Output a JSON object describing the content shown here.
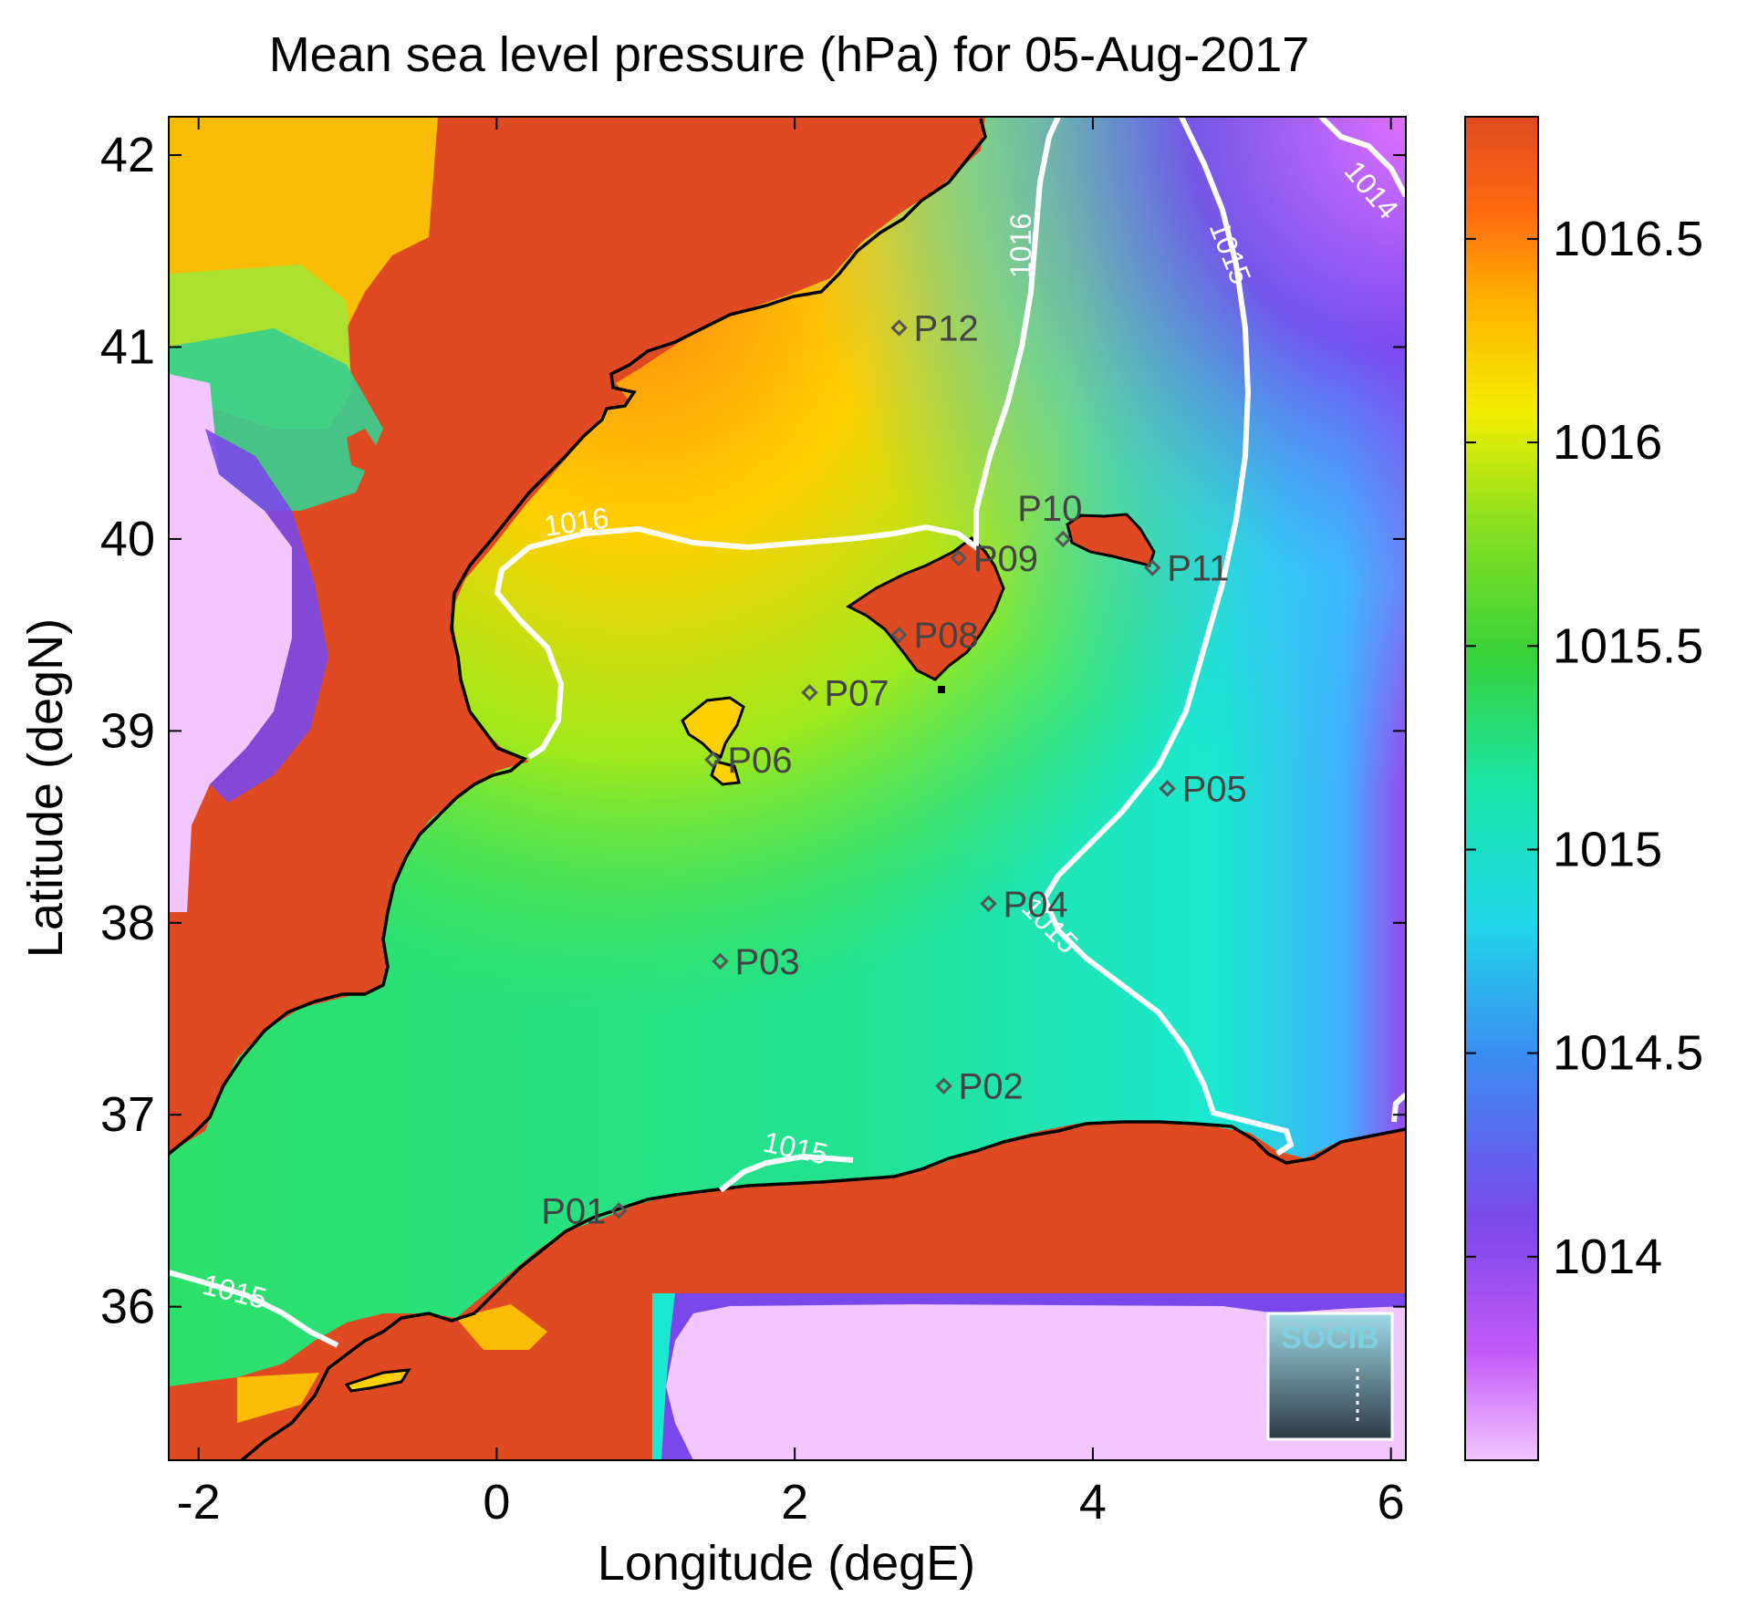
{
  "title": "Mean sea level pressure (hPa) for 05-Aug-2017",
  "axes": {
    "xlabel": "Longitude (degE)",
    "ylabel": "Latitude (degN)",
    "x_ticks": [
      "-2",
      "0",
      "2",
      "4",
      "6"
    ],
    "y_ticks": [
      "42",
      "41",
      "40",
      "39",
      "38",
      "37",
      "36"
    ]
  },
  "colorbar": {
    "ticks": [
      "1016.5",
      "1016",
      "1015.5",
      "1015",
      "1014.5",
      "1014"
    ]
  },
  "contour_labels": [
    "1016",
    "1016",
    "1015",
    "1014",
    "1015",
    "1015",
    "1015"
  ],
  "stations": [
    {
      "name": "P01",
      "lon": 0.82,
      "lat": 36.5
    },
    {
      "name": "P02",
      "lon": 3.0,
      "lat": 37.15
    },
    {
      "name": "P03",
      "lon": 1.5,
      "lat": 37.8
    },
    {
      "name": "P04",
      "lon": 3.3,
      "lat": 38.1
    },
    {
      "name": "P05",
      "lon": 4.5,
      "lat": 38.7
    },
    {
      "name": "P06",
      "lon": 1.45,
      "lat": 38.85
    },
    {
      "name": "P07",
      "lon": 2.1,
      "lat": 39.2
    },
    {
      "name": "P08",
      "lon": 2.7,
      "lat": 39.5
    },
    {
      "name": "P09",
      "lon": 3.1,
      "lat": 39.9
    },
    {
      "name": "P10",
      "lon": 3.8,
      "lat": 40.0
    },
    {
      "name": "P11",
      "lon": 4.4,
      "lat": 39.85
    },
    {
      "name": "P12",
      "lon": 2.7,
      "lat": 41.1
    }
  ],
  "logo_text": "SOCIB",
  "chart_data": {
    "type": "heatmap",
    "title": "Mean sea level pressure (hPa) for 05-Aug-2017",
    "xlabel": "Longitude (degE)",
    "ylabel": "Latitude (degN)",
    "xlim": [
      -2.2,
      6.1
    ],
    "ylim": [
      35.2,
      42.2
    ],
    "colorbar_range": [
      1013.5,
      1016.8
    ],
    "contour_levels": [
      1014,
      1015,
      1016
    ]
  }
}
